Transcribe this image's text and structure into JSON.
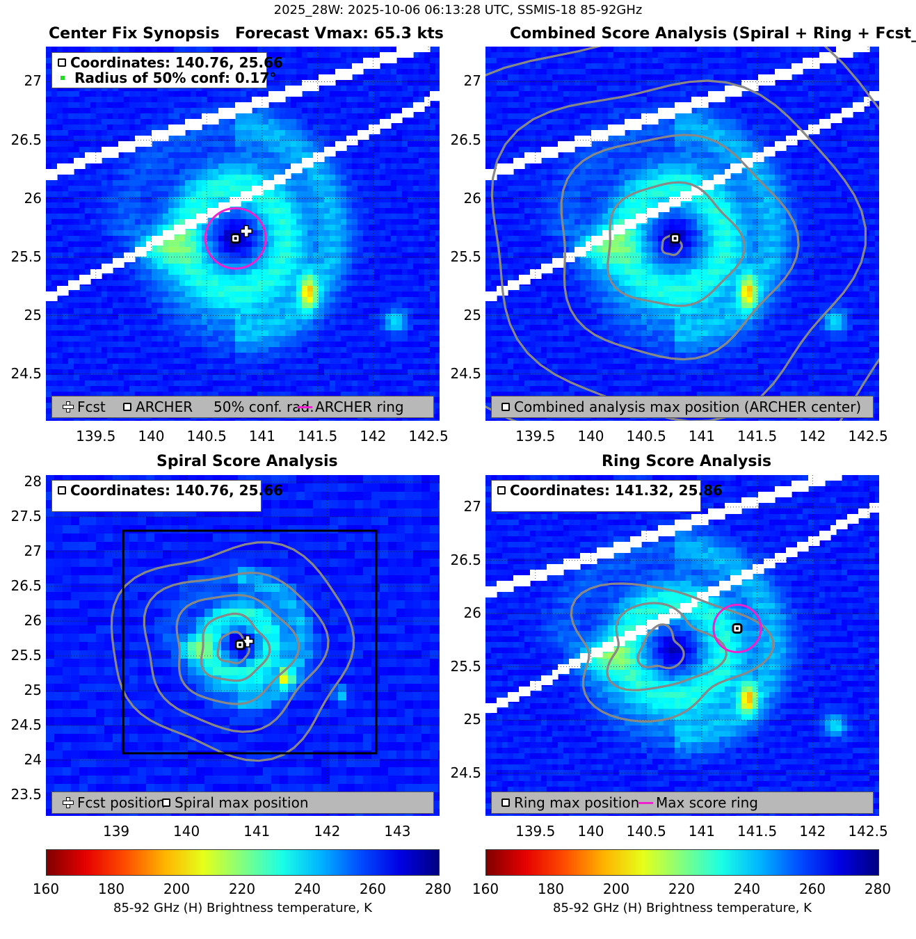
{
  "suptitle": "2025_28W: 2025-10-06 06:13:28 UTC, SSMIS-18 85-92GHz",
  "panels": {
    "synopsis": {
      "title_left": "Center Fix Synopsis",
      "title_right": "Forecast Vmax: 65.3 kts",
      "info": [
        "Coordinates: 140.76, 25.66",
        "Radius of 50% conf: 0.17°"
      ],
      "legend": [
        "Fcst",
        "ARCHER",
        "50% conf. rad.",
        "ARCHER ring"
      ]
    },
    "combined": {
      "title": "Combined Score Analysis (Spiral + Ring + Fcst_Pe",
      "legend": [
        "Combined analysis max position (ARCHER center)"
      ]
    },
    "spiral": {
      "title": "Spiral Score Analysis",
      "info": [
        "Coordinates: 140.76, 25.66"
      ],
      "legend": [
        "Fcst position",
        "Spiral max position"
      ]
    },
    "ring": {
      "title": "Ring Score Analysis",
      "info": [
        "Coordinates: 141.32, 25.86"
      ],
      "legend": [
        "Ring max position",
        "Max score ring"
      ]
    }
  },
  "colorbar": {
    "label": "85-92 GHz (H) Brightness temperature, K",
    "ticks": [
      "160",
      "180",
      "200",
      "220",
      "240",
      "260",
      "280"
    ]
  },
  "colors": {
    "ring": "#ee22cc",
    "contour": "#888888",
    "swath_gap": "#ffffff",
    "background_cold": "#1550f0"
  },
  "chart_data": [
    {
      "type": "heatmap",
      "name": "Center Fix Synopsis",
      "title": "Center Fix Synopsis     Forecast Vmax: 65.3 kts",
      "xlim": [
        139.05,
        142.6
      ],
      "ylim": [
        24.1,
        27.3
      ],
      "xticks": [
        "139.5",
        "140",
        "140.5",
        "141",
        "141.5",
        "142",
        "142.5"
      ],
      "yticks": [
        "24.5",
        "25",
        "25.5",
        "26",
        "26.5",
        "27"
      ],
      "archer_center": [
        140.76,
        25.66
      ],
      "forecast_position": [
        140.87,
        25.71
      ],
      "conf_radius_deg": 0.17,
      "colorbar_range": [
        160,
        280
      ]
    },
    {
      "type": "heatmap",
      "name": "Combined Score Analysis",
      "xlim": [
        139.05,
        142.6
      ],
      "ylim": [
        24.1,
        27.3
      ],
      "xticks": [
        "139.5",
        "140",
        "140.5",
        "141",
        "141.5",
        "142",
        "142.5"
      ],
      "yticks": [
        "24.5",
        "25",
        "25.5",
        "26",
        "26.5",
        "27"
      ],
      "max_position": [
        140.76,
        25.66
      ],
      "colorbar_range": [
        160,
        280
      ]
    },
    {
      "type": "heatmap",
      "name": "Spiral Score Analysis",
      "xlim": [
        138.0,
        143.6
      ],
      "ylim": [
        23.2,
        28.1
      ],
      "xticks": [
        "139",
        "140",
        "141",
        "142",
        "143"
      ],
      "yticks": [
        "23.5",
        "24",
        "24.5",
        "25",
        "25.5",
        "26",
        "26.5",
        "27",
        "27.5",
        "28"
      ],
      "spiral_max": [
        140.76,
        25.66
      ],
      "forecast_position": [
        140.87,
        25.71
      ],
      "search_box": {
        "x": [
          139.1,
          142.7
        ],
        "y": [
          24.1,
          27.3
        ]
      },
      "colorbar_range": [
        160,
        280
      ]
    },
    {
      "type": "heatmap",
      "name": "Ring Score Analysis",
      "xlim": [
        139.05,
        142.6
      ],
      "ylim": [
        24.1,
        27.3
      ],
      "xticks": [
        "139.5",
        "140",
        "140.5",
        "141",
        "141.5",
        "142",
        "142.5"
      ],
      "yticks": [
        "24.5",
        "25",
        "25.5",
        "26",
        "26.5",
        "27"
      ],
      "ring_max": [
        141.32,
        25.86
      ],
      "colorbar_range": [
        160,
        280
      ]
    }
  ]
}
